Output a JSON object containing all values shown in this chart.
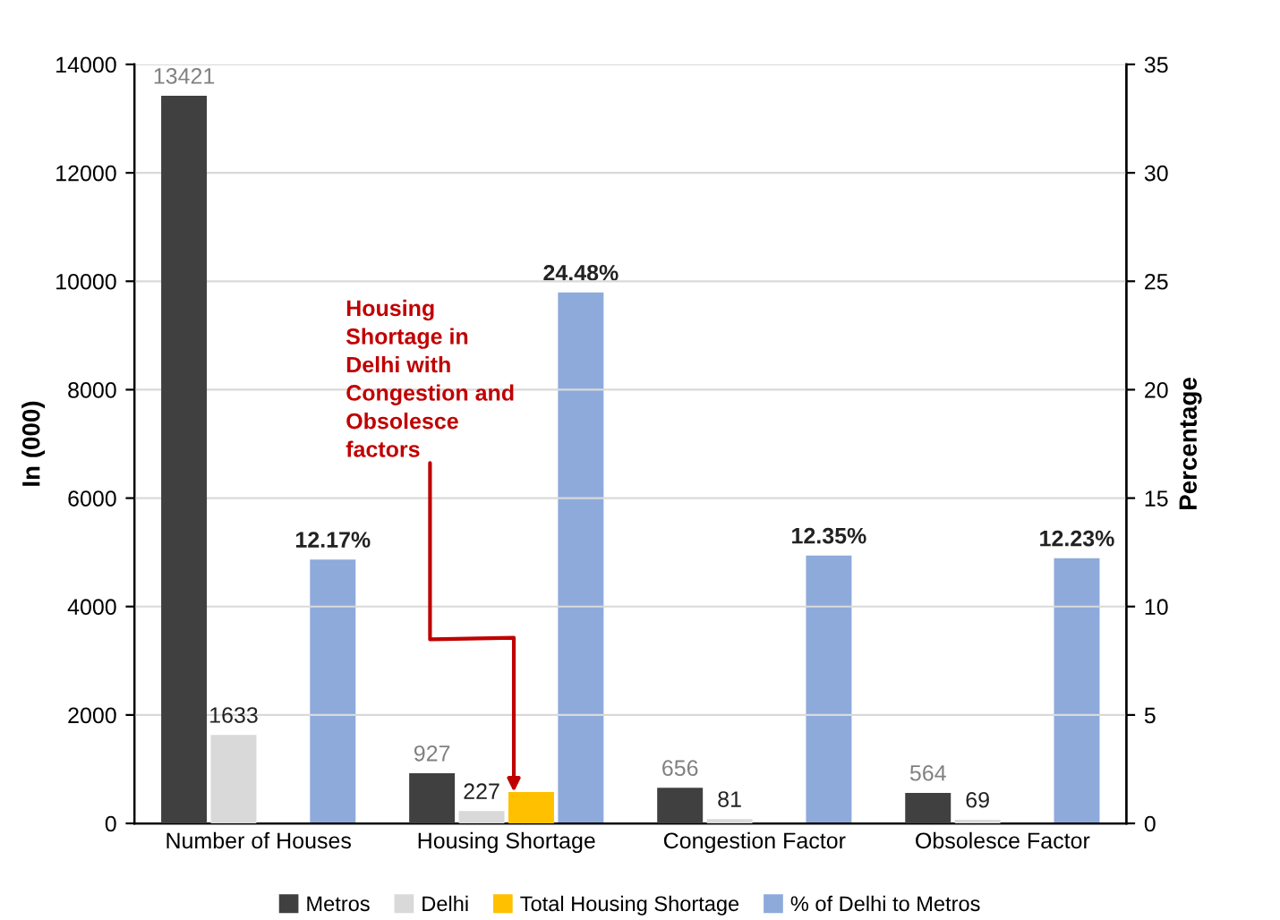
{
  "chart_data": {
    "type": "bar",
    "categories": [
      "Number of Houses",
      "Housing Shortage",
      "Congestion Factor",
      "Obsolesce Factor"
    ],
    "ylabel": "In (000)",
    "y2label": "Percentage",
    "series": [
      {
        "name": "Metros",
        "color": "#404040",
        "values": [
          13421,
          927,
          656,
          564
        ],
        "value_labels": [
          "13421",
          "927",
          "656",
          "564"
        ]
      },
      {
        "name": "Delhi",
        "color": "#d9d9d9",
        "values": [
          1633,
          227,
          81,
          69
        ],
        "value_labels": [
          "1633",
          "227",
          "81",
          "69"
        ]
      },
      {
        "name": "Total Housing Shortage",
        "color": "#ffc000",
        "values": [
          null,
          580,
          null,
          null
        ]
      },
      {
        "name": "% of Delhi to Metros",
        "color": "#8eaadb",
        "axis": "y2",
        "values": [
          12.17,
          24.48,
          12.35,
          12.23
        ],
        "value_labels": [
          "12.17%",
          "24.48%",
          "12.35%",
          "12.23%"
        ]
      }
    ],
    "ylim": [
      0,
      14000
    ],
    "yticks": [
      0,
      2000,
      4000,
      6000,
      8000,
      10000,
      12000,
      14000
    ],
    "y2lim": [
      0,
      35
    ],
    "y2ticks": [
      0,
      5,
      10,
      15,
      20,
      25,
      30,
      35
    ],
    "grid": "y",
    "legend": "bottom",
    "annotations": [
      {
        "text": "Housing\nShortage in\nDelhi with\nCongestion and\nObsolesce\nfactors",
        "x": "Housing Shortage",
        "y": 580
      }
    ]
  }
}
